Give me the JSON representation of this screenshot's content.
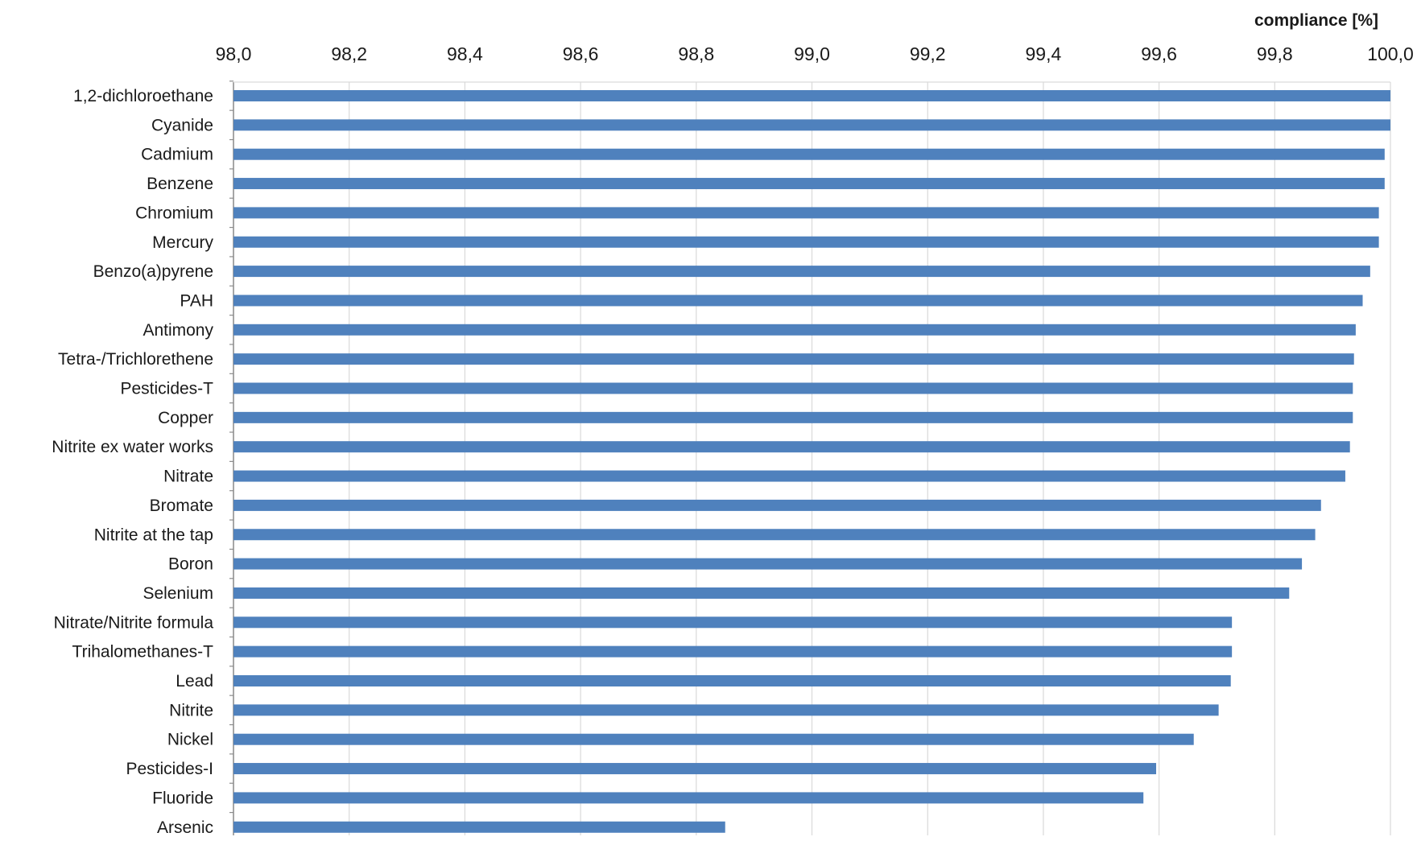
{
  "chart_data": {
    "type": "bar",
    "orientation": "horizontal",
    "axis_label": "compliance [%]",
    "x_axis_position": "top",
    "xlim": [
      98.0,
      100.0
    ],
    "ticks": [
      "98,0",
      "98,2",
      "98,4",
      "98,6",
      "98,8",
      "99,0",
      "99,2",
      "99,4",
      "99,6",
      "99,8",
      "100,0"
    ],
    "tick_values": [
      98.0,
      98.2,
      98.4,
      98.6,
      98.8,
      99.0,
      99.2,
      99.4,
      99.6,
      99.8,
      100.0
    ],
    "gridlines": true,
    "categories": [
      "1,2-dichloroethane",
      "Cyanide",
      "Cadmium",
      "Benzene",
      "Chromium",
      "Mercury",
      "Benzo(a)pyrene",
      "PAH",
      "Antimony",
      "Tetra-/Trichlorethene",
      "Pesticides-T",
      "Copper",
      "Nitrite ex water works",
      "Nitrate",
      "Bromate",
      "Nitrite at the tap",
      "Boron",
      "Selenium",
      "Nitrate/Nitrite formula",
      "Trihalomethanes-T",
      "Lead",
      "Nitrite",
      "Nickel",
      "Pesticides-I",
      "Fluoride",
      "Arsenic"
    ],
    "values": [
      100.0,
      100.0,
      99.99,
      99.99,
      99.98,
      99.98,
      99.965,
      99.952,
      99.94,
      99.937,
      99.935,
      99.935,
      99.93,
      99.922,
      99.88,
      99.87,
      99.847,
      99.825,
      99.726,
      99.726,
      99.724,
      99.703,
      99.66,
      99.595,
      99.573,
      98.85
    ],
    "bar_color": "#4F81BD"
  }
}
